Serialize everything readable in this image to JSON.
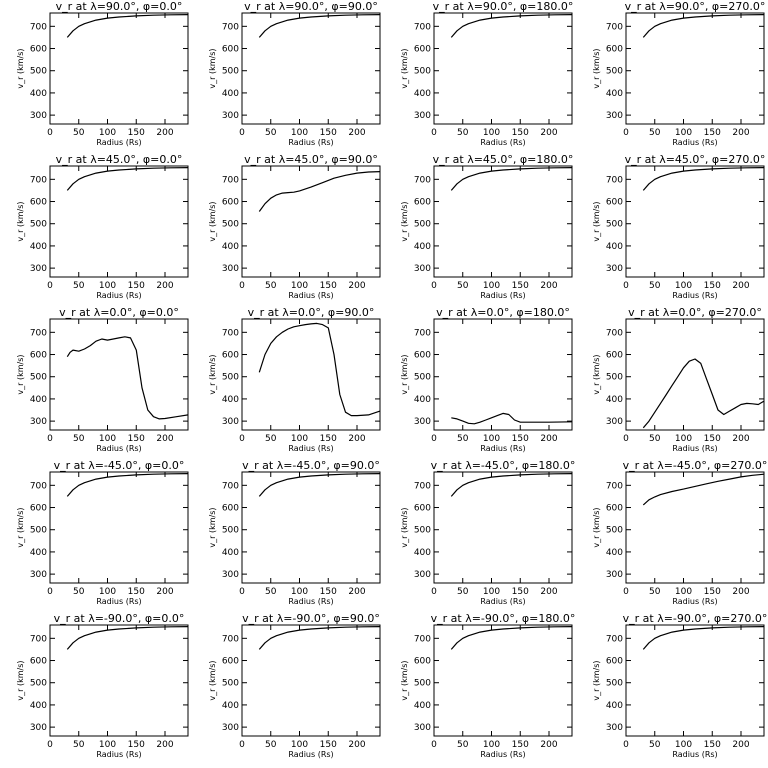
{
  "chart_data": {
    "type": "line",
    "layout": "grid",
    "x_label": "Radius (Rs)",
    "y_label": "v_r (km/s)",
    "x_ticks": [
      0,
      50,
      100,
      150,
      200
    ],
    "y_ticks": [
      300,
      400,
      500,
      600,
      700
    ],
    "xlim": [
      0,
      240
    ],
    "ylim": [
      260,
      760
    ],
    "panels": [
      {
        "title": "v_r at λ=90.0°, φ=0.0°",
        "x": [
          30,
          40,
          50,
          60,
          80,
          100,
          120,
          150,
          180,
          210,
          240
        ],
        "y": [
          650,
          680,
          700,
          712,
          728,
          737,
          742,
          747,
          750,
          752,
          753
        ]
      },
      {
        "title": "v_r at λ=90.0°, φ=90.0°",
        "x": [
          30,
          40,
          50,
          60,
          80,
          100,
          120,
          150,
          180,
          210,
          240
        ],
        "y": [
          650,
          680,
          700,
          712,
          728,
          737,
          742,
          747,
          750,
          752,
          753
        ]
      },
      {
        "title": "v_r at λ=90.0°, φ=180.0°",
        "x": [
          30,
          40,
          50,
          60,
          80,
          100,
          120,
          150,
          180,
          210,
          240
        ],
        "y": [
          650,
          680,
          700,
          712,
          728,
          737,
          742,
          747,
          750,
          752,
          753
        ]
      },
      {
        "title": "v_r at λ=90.0°, φ=270.0°",
        "x": [
          30,
          40,
          50,
          60,
          80,
          100,
          120,
          150,
          180,
          210,
          240
        ],
        "y": [
          650,
          680,
          700,
          712,
          728,
          737,
          742,
          747,
          750,
          752,
          753
        ]
      },
      {
        "title": "v_r at λ=45.0°, φ=0.0°",
        "x": [
          30,
          40,
          50,
          60,
          80,
          100,
          120,
          150,
          180,
          210,
          240
        ],
        "y": [
          650,
          680,
          700,
          712,
          728,
          737,
          742,
          747,
          750,
          752,
          753
        ]
      },
      {
        "title": "v_r at λ=45.0°, φ=90.0°",
        "x": [
          30,
          40,
          50,
          60,
          70,
          80,
          90,
          100,
          120,
          140,
          160,
          180,
          200,
          220,
          240
        ],
        "y": [
          555,
          590,
          615,
          630,
          638,
          640,
          642,
          648,
          665,
          685,
          705,
          718,
          728,
          733,
          735
        ]
      },
      {
        "title": "v_r at λ=45.0°, φ=180.0°",
        "x": [
          30,
          40,
          50,
          60,
          80,
          100,
          120,
          150,
          180,
          210,
          240
        ],
        "y": [
          650,
          680,
          700,
          712,
          728,
          737,
          742,
          747,
          750,
          752,
          753
        ]
      },
      {
        "title": "v_r at λ=45.0°, φ=270.0°",
        "x": [
          30,
          40,
          50,
          60,
          80,
          100,
          120,
          150,
          180,
          210,
          240
        ],
        "y": [
          650,
          680,
          700,
          712,
          728,
          737,
          742,
          747,
          750,
          752,
          753
        ]
      },
      {
        "title": "v_r at λ=0.0°, φ=0.0°",
        "x": [
          30,
          35,
          40,
          50,
          60,
          70,
          80,
          90,
          100,
          110,
          120,
          130,
          140,
          150,
          160,
          170,
          180,
          190,
          200,
          220,
          240
        ],
        "y": [
          590,
          610,
          620,
          615,
          625,
          640,
          660,
          670,
          665,
          670,
          675,
          680,
          675,
          620,
          450,
          350,
          320,
          310,
          312,
          320,
          328
        ]
      },
      {
        "title": "v_r at λ=0.0°, φ=90.0°",
        "x": [
          30,
          40,
          50,
          60,
          70,
          80,
          90,
          100,
          110,
          120,
          130,
          140,
          150,
          160,
          170,
          180,
          190,
          200,
          220,
          240
        ],
        "y": [
          520,
          600,
          650,
          680,
          700,
          715,
          725,
          730,
          735,
          738,
          740,
          735,
          720,
          600,
          420,
          340,
          325,
          325,
          328,
          345
        ]
      },
      {
        "title": "v_r at λ=0.0°, φ=180.0°",
        "x": [
          30,
          40,
          50,
          60,
          70,
          80,
          90,
          100,
          110,
          120,
          130,
          140,
          150,
          200,
          240
        ],
        "y": [
          315,
          310,
          300,
          290,
          288,
          295,
          305,
          315,
          325,
          335,
          330,
          305,
          295,
          295,
          297
        ]
      },
      {
        "title": "v_r at λ=0.0°, φ=270.0°",
        "x": [
          30,
          40,
          50,
          60,
          70,
          80,
          90,
          100,
          110,
          120,
          130,
          140,
          150,
          160,
          170,
          180,
          190,
          200,
          210,
          220,
          230,
          240
        ],
        "y": [
          270,
          300,
          340,
          380,
          420,
          460,
          500,
          540,
          570,
          580,
          560,
          490,
          420,
          350,
          330,
          345,
          360,
          375,
          380,
          378,
          375,
          390
        ]
      },
      {
        "title": "v_r at λ=-45.0°, φ=0.0°",
        "x": [
          30,
          40,
          50,
          60,
          80,
          100,
          120,
          150,
          180,
          210,
          240
        ],
        "y": [
          650,
          680,
          700,
          712,
          728,
          737,
          742,
          747,
          750,
          752,
          753
        ]
      },
      {
        "title": "v_r at λ=-45.0°, φ=90.0°",
        "x": [
          30,
          40,
          50,
          60,
          80,
          100,
          120,
          150,
          180,
          210,
          240
        ],
        "y": [
          650,
          680,
          700,
          712,
          728,
          737,
          742,
          747,
          750,
          752,
          753
        ]
      },
      {
        "title": "v_r at λ=-45.0°, φ=180.0°",
        "x": [
          30,
          40,
          50,
          60,
          80,
          100,
          120,
          150,
          180,
          210,
          240
        ],
        "y": [
          650,
          680,
          700,
          712,
          728,
          737,
          742,
          747,
          750,
          752,
          753
        ]
      },
      {
        "title": "v_r at λ=-45.0°, φ=270.0°",
        "x": [
          30,
          40,
          50,
          60,
          80,
          100,
          120,
          140,
          160,
          180,
          200,
          220,
          240
        ],
        "y": [
          612,
          635,
          648,
          658,
          672,
          683,
          695,
          707,
          718,
          728,
          738,
          745,
          750
        ]
      },
      {
        "title": "v_r at λ=-90.0°, φ=0.0°",
        "x": [
          30,
          40,
          50,
          60,
          80,
          100,
          120,
          150,
          180,
          210,
          240
        ],
        "y": [
          650,
          680,
          700,
          712,
          728,
          737,
          742,
          747,
          750,
          752,
          753
        ]
      },
      {
        "title": "v_r at λ=-90.0°, φ=90.0°",
        "x": [
          30,
          40,
          50,
          60,
          80,
          100,
          120,
          150,
          180,
          210,
          240
        ],
        "y": [
          650,
          680,
          700,
          712,
          728,
          737,
          742,
          747,
          750,
          752,
          753
        ]
      },
      {
        "title": "v_r at λ=-90.0°, φ=180.0°",
        "x": [
          30,
          40,
          50,
          60,
          80,
          100,
          120,
          150,
          180,
          210,
          240
        ],
        "y": [
          650,
          680,
          700,
          712,
          728,
          737,
          742,
          747,
          750,
          752,
          753
        ]
      },
      {
        "title": "v_r at λ=-90.0°, φ=270.0°",
        "x": [
          30,
          40,
          50,
          60,
          80,
          100,
          120,
          150,
          180,
          210,
          240
        ],
        "y": [
          650,
          680,
          700,
          712,
          728,
          737,
          742,
          747,
          750,
          752,
          753
        ]
      }
    ]
  }
}
